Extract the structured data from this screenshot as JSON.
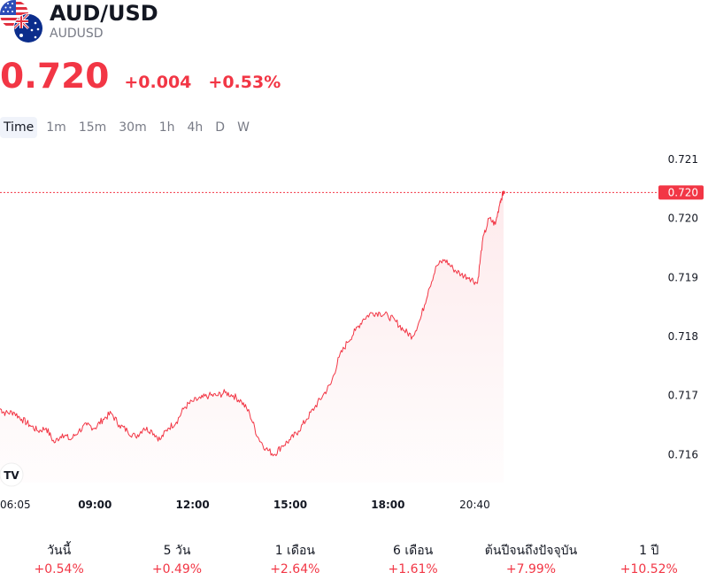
{
  "header": {
    "symbol": "AUD/USD",
    "ticker": "AUDUSD",
    "price": "0.720",
    "change": "+0.004",
    "change_percent": "+0.53%",
    "flag_icons": [
      "us-flag-icon",
      "australia-flag-icon"
    ]
  },
  "timeframes": [
    {
      "label": "Time",
      "active": true
    },
    {
      "label": "1m",
      "active": false
    },
    {
      "label": "15m",
      "active": false
    },
    {
      "label": "30m",
      "active": false
    },
    {
      "label": "1h",
      "active": false
    },
    {
      "label": "4h",
      "active": false
    },
    {
      "label": "D",
      "active": false
    },
    {
      "label": "W",
      "active": false
    }
  ],
  "chart_data": {
    "type": "area",
    "x_ticks": [
      {
        "label": "06:05",
        "t": 6.083,
        "bold": false
      },
      {
        "label": "09:00",
        "t": 9.0,
        "bold": true
      },
      {
        "label": "12:00",
        "t": 12.0,
        "bold": true
      },
      {
        "label": "15:00",
        "t": 15.0,
        "bold": true
      },
      {
        "label": "18:00",
        "t": 18.0,
        "bold": true
      },
      {
        "label": "20:40",
        "t": 20.667,
        "bold": false
      }
    ],
    "y_ticks": [
      "0.721",
      "0.720",
      "0.719",
      "0.718",
      "0.717",
      "0.716"
    ],
    "ylim": [
      0.7156,
      0.7213
    ],
    "xlim": [
      6.083,
      26.2
    ],
    "last_price": "0.720",
    "last_value": 0.72044,
    "points": [
      [
        6.08,
        0.71678
      ],
      [
        6.25,
        0.7167
      ],
      [
        6.5,
        0.71672
      ],
      [
        6.75,
        0.7166
      ],
      [
        7.0,
        0.7165
      ],
      [
        7.25,
        0.7164
      ],
      [
        7.5,
        0.71645
      ],
      [
        7.75,
        0.7162
      ],
      [
        8.0,
        0.71635
      ],
      [
        8.25,
        0.71625
      ],
      [
        8.5,
        0.7164
      ],
      [
        8.75,
        0.7165
      ],
      [
        9.0,
        0.71645
      ],
      [
        9.25,
        0.7166
      ],
      [
        9.5,
        0.7167
      ],
      [
        9.75,
        0.7165
      ],
      [
        10.0,
        0.7164
      ],
      [
        10.25,
        0.7163
      ],
      [
        10.5,
        0.71645
      ],
      [
        10.75,
        0.7164
      ],
      [
        11.0,
        0.71625
      ],
      [
        11.25,
        0.71645
      ],
      [
        11.5,
        0.71655
      ],
      [
        11.75,
        0.7168
      ],
      [
        12.0,
        0.7169
      ],
      [
        12.25,
        0.71695
      ],
      [
        12.5,
        0.717
      ],
      [
        12.75,
        0.717
      ],
      [
        13.0,
        0.71705
      ],
      [
        13.25,
        0.717
      ],
      [
        13.5,
        0.7169
      ],
      [
        13.75,
        0.7167
      ],
      [
        14.0,
        0.7163
      ],
      [
        14.25,
        0.7161
      ],
      [
        14.5,
        0.716
      ],
      [
        14.75,
        0.71615
      ],
      [
        15.0,
        0.71625
      ],
      [
        15.25,
        0.7164
      ],
      [
        15.5,
        0.7166
      ],
      [
        15.75,
        0.7168
      ],
      [
        16.0,
        0.717
      ],
      [
        16.25,
        0.7172
      ],
      [
        16.5,
        0.71765
      ],
      [
        16.75,
        0.7179
      ],
      [
        17.0,
        0.7181
      ],
      [
        17.25,
        0.7183
      ],
      [
        17.5,
        0.7184
      ],
      [
        17.75,
        0.7184
      ],
      [
        18.0,
        0.71835
      ],
      [
        18.25,
        0.71825
      ],
      [
        18.5,
        0.7181
      ],
      [
        18.75,
        0.718
      ],
      [
        19.0,
        0.7183
      ],
      [
        19.25,
        0.7188
      ],
      [
        19.5,
        0.7192
      ],
      [
        19.75,
        0.7193
      ],
      [
        20.0,
        0.71915
      ],
      [
        20.25,
        0.71905
      ],
      [
        20.5,
        0.719
      ],
      [
        20.75,
        0.7189
      ],
      [
        20.9,
        0.7196
      ],
      [
        21.1,
        0.72
      ],
      [
        21.3,
        0.7199
      ],
      [
        21.45,
        0.7203
      ],
      [
        21.55,
        0.72044
      ]
    ]
  },
  "stats": [
    {
      "label": "วันนี้",
      "value": "+0.54%"
    },
    {
      "label": "5 วัน",
      "value": "+0.49%"
    },
    {
      "label": "1 เดือน",
      "value": "+2.64%"
    },
    {
      "label": "6 เดือน",
      "value": "+1.61%"
    },
    {
      "label": "ต้นปีจนถึงปัจจุบัน",
      "value": "+7.99%"
    },
    {
      "label": "1 ปี",
      "value": "+10.52%"
    }
  ],
  "colors": {
    "down": "#f23645",
    "text": "#131722",
    "muted": "#787b86",
    "fill_top": "#fde8ea"
  }
}
